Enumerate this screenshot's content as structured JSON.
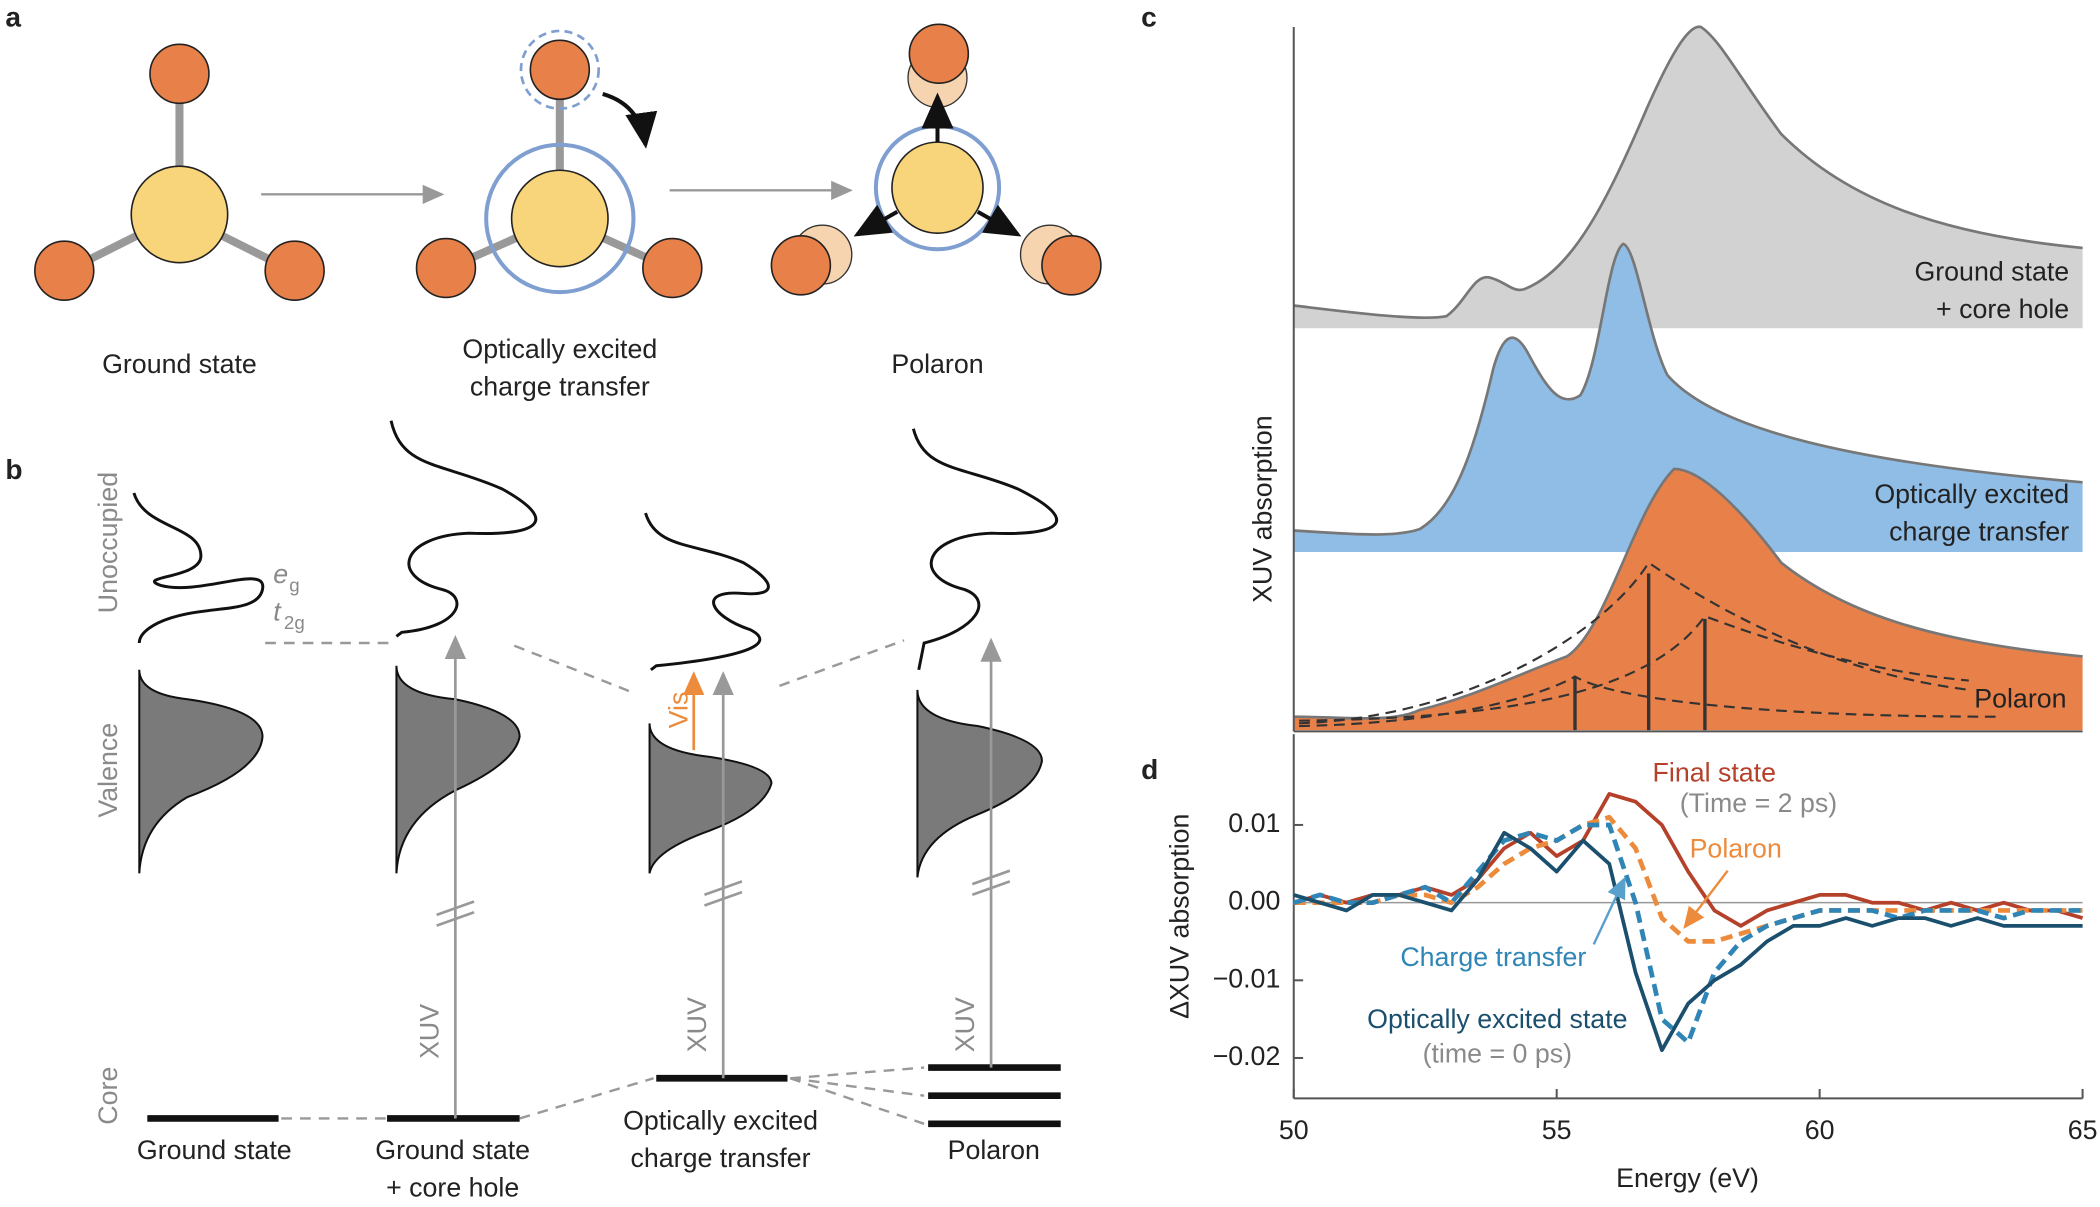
{
  "panel_a": {
    "label": "a",
    "states": [
      {
        "lines": [
          "Ground state"
        ]
      },
      {
        "lines": [
          "Optically excited",
          "charge transfer"
        ]
      },
      {
        "lines": [
          "Polaron"
        ]
      }
    ]
  },
  "panel_b": {
    "label": "b",
    "axis_labels": [
      "Unoccupied",
      "Valence",
      "Core"
    ],
    "orbitals": [
      {
        "main": "e",
        "sub": "g"
      },
      {
        "main": "t",
        "sub": "2g"
      }
    ],
    "vis": "Vis",
    "xuv": [
      "XUV",
      "XUV",
      "XUV"
    ],
    "states": [
      {
        "lines": [
          "Ground state"
        ]
      },
      {
        "lines": [
          "Ground state",
          "+ core hole"
        ]
      },
      {
        "lines": [
          "Optically excited",
          "charge transfer"
        ]
      },
      {
        "lines": [
          "Polaron"
        ]
      }
    ]
  },
  "panel_c": {
    "label": "c",
    "ylabel": "XUV absorption",
    "spectra": [
      {
        "lines": [
          "Ground state",
          "+ core hole"
        ]
      },
      {
        "lines": [
          "Optically excited",
          "charge transfer"
        ]
      },
      {
        "lines": [
          "Polaron"
        ]
      }
    ]
  },
  "chart_data": {
    "type": "line",
    "label": "d",
    "xlabel": "Energy (eV)",
    "ylabel": "ΔXUV absorption",
    "x": [
      50,
      50.5,
      51,
      51.5,
      52,
      52.5,
      53,
      53.5,
      54,
      54.5,
      55,
      55.5,
      56,
      56.5,
      57,
      57.5,
      58,
      58.5,
      59,
      59.5,
      60,
      60.5,
      61,
      61.5,
      62,
      62.5,
      63,
      63.5,
      64,
      64.5,
      65
    ],
    "xlim": [
      50,
      65
    ],
    "xticks": [
      50,
      55,
      60,
      65
    ],
    "ylim": [
      -0.0252,
      0.0217
    ],
    "yticks": [
      {
        "value": 0.01,
        "label": "0.01"
      },
      {
        "value": 0,
        "label": "0.00"
      },
      {
        "value": -0.01,
        "label": "−0.01"
      },
      {
        "value": -0.02,
        "label": "−0.02"
      }
    ],
    "series": [
      {
        "name": "Final state",
        "note": "(Time = 2 ps)",
        "color": "#b5412b",
        "dashed": false,
        "values": [
          0,
          0.001,
          0,
          0.001,
          0.001,
          0.002,
          0.001,
          0.003,
          0.007,
          0.009,
          0.006,
          0.008,
          0.014,
          0.013,
          0.01,
          0.004,
          -0.001,
          -0.003,
          -0.001,
          0,
          0.001,
          0.001,
          0,
          0,
          -0.001,
          0,
          -0.001,
          0,
          -0.001,
          -0.001,
          -0.002
        ]
      },
      {
        "name": "Polaron",
        "color": "#ed8b3c",
        "dashed": true,
        "values": [
          0,
          0,
          0,
          0,
          0.001,
          0.001,
          0,
          0.002,
          0.005,
          0.007,
          0.008,
          0.01,
          0.011,
          0.007,
          -0.002,
          -0.005,
          -0.005,
          -0.004,
          -0.003,
          -0.002,
          -0.001,
          -0.001,
          -0.001,
          -0.001,
          -0.001,
          -0.001,
          -0.001,
          -0.001,
          -0.001,
          -0.001,
          -0.001
        ]
      },
      {
        "name": "Charge transfer",
        "color": "#2f86b6",
        "dashed": true,
        "values": [
          0,
          0.001,
          0,
          0,
          0.001,
          0.002,
          0,
          0.004,
          0.008,
          0.009,
          0.008,
          0.01,
          0.01,
          0,
          -0.015,
          -0.018,
          -0.009,
          -0.005,
          -0.003,
          -0.002,
          -0.001,
          -0.001,
          -0.001,
          -0.002,
          -0.001,
          -0.001,
          -0.001,
          -0.002,
          -0.001,
          -0.001,
          -0.001
        ]
      },
      {
        "name": "Optically excited state",
        "note": "(time = 0 ps)",
        "color": "#1b4f6e",
        "dashed": false,
        "values": [
          0.001,
          0,
          -0.001,
          0.001,
          0.001,
          0,
          -0.001,
          0.003,
          0.009,
          0.007,
          0.004,
          0.008,
          0.005,
          -0.009,
          -0.019,
          -0.013,
          -0.01,
          -0.008,
          -0.005,
          -0.003,
          -0.003,
          -0.002,
          -0.003,
          -0.002,
          -0.002,
          -0.003,
          -0.002,
          -0.003,
          -0.003,
          -0.003,
          -0.003
        ]
      }
    ]
  }
}
